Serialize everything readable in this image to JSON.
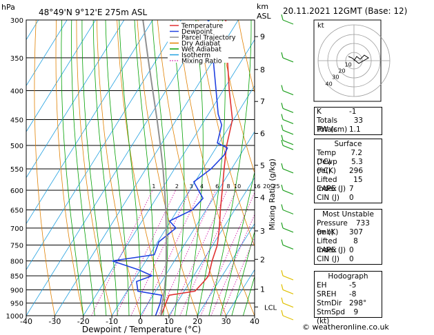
{
  "header": {
    "pressure_unit": "hPa",
    "location": "48°49'N  9°12'E  275m  ASL",
    "height_unit": "km",
    "height_ref": "ASL",
    "date": "20.11.2021  12GMT  (Base: 12)"
  },
  "legend": [
    {
      "label": "Temperature",
      "color": "#e03030"
    },
    {
      "label": "Dewpoint",
      "color": "#2040e0"
    },
    {
      "label": "Parcel Trajectory",
      "color": "#909090"
    },
    {
      "label": "Dry Adiabat",
      "color": "#e08000"
    },
    {
      "label": "Wet Adiabat",
      "color": "#00a000"
    },
    {
      "label": "Isotherm",
      "color": "#20a0e0"
    },
    {
      "label": "Mixing Ratio",
      "color": "#d000a0"
    }
  ],
  "chart_data": {
    "type": "line",
    "title": "",
    "xlabel": "Dewpoint / Temperature (°C)",
    "ylabel": "hPa",
    "xlim": [
      -40,
      40
    ],
    "ylim": [
      1000,
      300
    ],
    "pressure_ticks": [
      300,
      350,
      400,
      450,
      500,
      550,
      600,
      650,
      700,
      750,
      800,
      850,
      900,
      950,
      1000
    ],
    "temp_ticks": [
      -40,
      -30,
      -20,
      -10,
      0,
      10,
      20,
      30,
      40
    ],
    "km_ticks": [
      {
        "label": "1",
        "p": 898
      },
      {
        "label": "2",
        "p": 795
      },
      {
        "label": "3",
        "p": 708
      },
      {
        "label": "4",
        "p": 618
      },
      {
        "label": "5",
        "p": 542
      },
      {
        "label": "6",
        "p": 476
      },
      {
        "label": "7",
        "p": 418
      },
      {
        "label": "8",
        "p": 367
      },
      {
        "label": "9",
        "p": 321
      }
    ],
    "lcl_label": "LCL",
    "lcl_p": 965,
    "mixing_ratio_label": "Mixing Ratio (g/kg)",
    "mixing_ratio_values": [
      "1",
      "2",
      "3",
      "4",
      "6",
      "8",
      "10",
      "16",
      "20",
      "25"
    ],
    "series": [
      {
        "name": "Temperature",
        "points": [
          [
            1000,
            7.2
          ],
          [
            950,
            6.2
          ],
          [
            920,
            5.6
          ],
          [
            905,
            13.8
          ],
          [
            870,
            14.8
          ],
          [
            850,
            15.2
          ],
          [
            800,
            13.2
          ],
          [
            750,
            11.6
          ],
          [
            700,
            8.6
          ],
          [
            650,
            5.0
          ],
          [
            600,
            1.4
          ],
          [
            550,
            -2.6
          ],
          [
            500,
            -6.8
          ],
          [
            450,
            -10.4
          ],
          [
            400,
            -17.8
          ],
          [
            350,
            -25.6
          ],
          [
            300,
            -34.4
          ]
        ]
      },
      {
        "name": "Dewpoint",
        "points": [
          [
            1000,
            5.3
          ],
          [
            950,
            4.2
          ],
          [
            920,
            3.0
          ],
          [
            905,
            -6.2
          ],
          [
            870,
            -8.8
          ],
          [
            850,
            -4.6
          ],
          [
            830,
            -10.4
          ],
          [
            800,
            -21.8
          ],
          [
            780,
            -8.4
          ],
          [
            740,
            -9.6
          ],
          [
            700,
            -6.6
          ],
          [
            680,
            -10.4
          ],
          [
            650,
            -4.8
          ],
          [
            620,
            -3.6
          ],
          [
            580,
            -10.4
          ],
          [
            550,
            -7.2
          ],
          [
            520,
            -5.6
          ],
          [
            505,
            -6.0
          ],
          [
            495,
            -10.6
          ],
          [
            460,
            -13.0
          ],
          [
            440,
            -16.6
          ],
          [
            400,
            -22.4
          ],
          [
            350,
            -30.6
          ],
          [
            300,
            -40.6
          ]
        ]
      },
      {
        "name": "Parcel Trajectory",
        "points": [
          [
            1000,
            7.2
          ],
          [
            965,
            5.6
          ],
          [
            900,
            2.8
          ],
          [
            850,
            0.2
          ],
          [
            800,
            -2.9
          ],
          [
            750,
            -6.3
          ],
          [
            700,
            -10.0
          ],
          [
            650,
            -14.1
          ],
          [
            600,
            -18.8
          ],
          [
            550,
            -24.0
          ],
          [
            500,
            -30.0
          ],
          [
            450,
            -36.8
          ],
          [
            400,
            -44.6
          ],
          [
            350,
            -53.4
          ],
          [
            300,
            -63.4
          ]
        ]
      }
    ]
  },
  "hodograph": {
    "label": "kt",
    "ring_labels": [
      "10",
      "20",
      "30",
      "40"
    ]
  },
  "indices": [
    {
      "label": "K",
      "value": "-1"
    },
    {
      "label": "Totals Totals",
      "value": "33"
    },
    {
      "label": "PW (cm)",
      "value": "1.1"
    }
  ],
  "surface": {
    "title": "Surface",
    "rows": [
      {
        "label": "Temp (°C)",
        "value": "7.2"
      },
      {
        "label": "Dewp (°C)",
        "value": "5.3"
      },
      {
        "label": "θe(K)",
        "value": "296"
      },
      {
        "label": "Lifted Index",
        "value": "15"
      },
      {
        "label": "CAPE (J)",
        "value": "7"
      },
      {
        "label": "CIN (J)",
        "value": "0"
      }
    ]
  },
  "most_unstable": {
    "title": "Most Unstable",
    "rows": [
      {
        "label": "Pressure (mb)",
        "value": "733"
      },
      {
        "label": "θe (K)",
        "value": "307"
      },
      {
        "label": "Lifted Index",
        "value": "8"
      },
      {
        "label": "CAPE (J)",
        "value": "0"
      },
      {
        "label": "CIN (J)",
        "value": "0"
      }
    ]
  },
  "hodograph_box": {
    "title": "Hodograph",
    "rows": [
      {
        "label": "EH",
        "value": "-5"
      },
      {
        "label": "SREH",
        "value": "-8"
      },
      {
        "label": "StmDir",
        "value": "298°"
      },
      {
        "label": "StmSpd (kt)",
        "value": "9"
      }
    ]
  },
  "copyright": "© weatheronline.co.uk"
}
